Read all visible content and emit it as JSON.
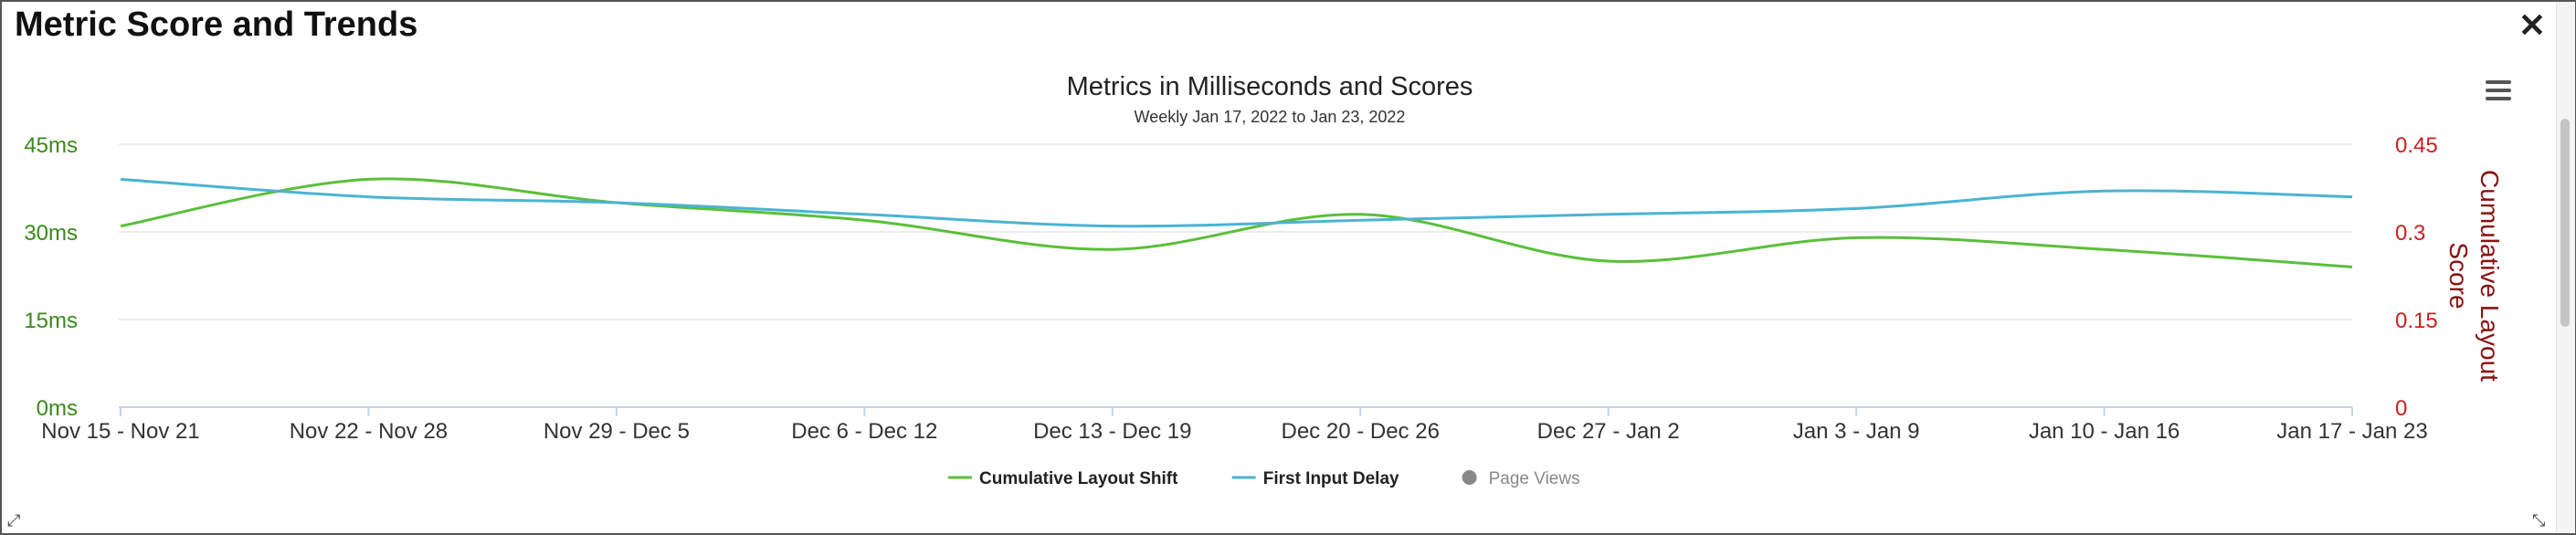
{
  "panel": {
    "title": "Metric Score and Trends",
    "close_icon": "close-icon",
    "menu_icon": "hamburger-menu-icon",
    "resize_icon": "resize-diagonal-icon"
  },
  "chart_data": {
    "type": "line",
    "title": "Metrics in Milliseconds and Scores",
    "subtitle": "Weekly Jan 17, 2022 to Jan 23, 2022",
    "categories": [
      "Nov 15 - Nov 21",
      "Nov 22 - Nov 28",
      "Nov 29 - Dec 5",
      "Dec 6 - Dec 12",
      "Dec 13 - Dec 19",
      "Dec 20 - Dec 26",
      "Dec 27 - Jan 2",
      "Jan 3 - Jan 9",
      "Jan 10 - Jan 16",
      "Jan 17 - Jan 23"
    ],
    "y_left": {
      "ticks": [
        0,
        15,
        30,
        45
      ],
      "tick_labels": [
        "0ms",
        "15ms",
        "30ms",
        "45ms"
      ],
      "range": [
        0,
        45
      ],
      "color": "#3a8a1a"
    },
    "y_right": {
      "label": "Cumulative Layout Score",
      "ticks": [
        0,
        0.15,
        0.3,
        0.45
      ],
      "tick_labels": [
        "0",
        "0.15",
        "0.3",
        "0.45"
      ],
      "range": [
        0,
        0.45
      ],
      "color": "#cc2020",
      "label_color": "#8b1010"
    },
    "series": [
      {
        "name": "Cumulative Layout Shift",
        "axis": "right",
        "color": "#5abf3a",
        "values": [
          0.31,
          0.39,
          0.35,
          0.32,
          0.27,
          0.33,
          0.25,
          0.29,
          0.27,
          0.24
        ]
      },
      {
        "name": "First Input Delay",
        "axis": "left",
        "color": "#4bb3d3",
        "values": [
          39,
          36,
          35,
          33,
          31,
          32,
          33,
          34,
          37,
          36
        ]
      }
    ],
    "legend": {
      "position": "bottom-center",
      "items": [
        {
          "name": "Cumulative Layout Shift",
          "color": "#5abf3a",
          "symbol": "line",
          "active": true
        },
        {
          "name": "First Input Delay",
          "color": "#4bb3d3",
          "symbol": "line",
          "active": true
        },
        {
          "name": "Page Views",
          "color": "#888888",
          "symbol": "circle",
          "active": false
        }
      ]
    },
    "grid": true
  }
}
